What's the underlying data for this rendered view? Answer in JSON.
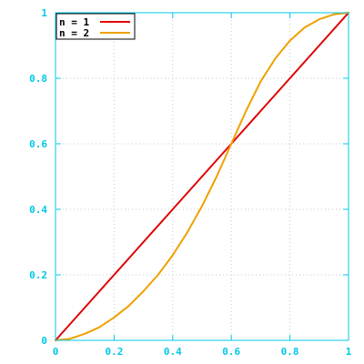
{
  "chart_data": {
    "type": "line",
    "title": "",
    "xlabel": "",
    "ylabel": "",
    "xlim": [
      0,
      1
    ],
    "ylim": [
      0,
      1
    ],
    "grid": true,
    "legend_position": "top-left",
    "x_ticks": [
      "0",
      "0.2",
      "0.4",
      "0.6",
      "0.8",
      "1"
    ],
    "y_ticks": [
      "0",
      "0.2",
      "0.4",
      "0.6",
      "0.8",
      "1"
    ],
    "x_tick_values": [
      0,
      0.2,
      0.4,
      0.6,
      0.8,
      1
    ],
    "y_tick_values": [
      0,
      0.2,
      0.4,
      0.6,
      0.8,
      1
    ],
    "axis_color": "#00c8e8",
    "series": [
      {
        "name": "n = 1",
        "color": "#e00000",
        "x": [
          0,
          0.1,
          0.2,
          0.3,
          0.4,
          0.5,
          0.6,
          0.7,
          0.8,
          0.9,
          1
        ],
        "y": [
          0,
          0.1,
          0.2,
          0.3,
          0.4,
          0.5,
          0.6,
          0.7,
          0.8,
          0.9,
          1
        ]
      },
      {
        "name": "n = 2",
        "color": "#f0a000",
        "x": [
          0,
          0.05,
          0.1,
          0.15,
          0.2,
          0.25,
          0.3,
          0.35,
          0.4,
          0.45,
          0.5,
          0.55,
          0.6,
          0.65,
          0.7,
          0.75,
          0.8,
          0.85,
          0.9,
          0.95,
          1
        ],
        "y": [
          0,
          0.005,
          0.02,
          0.04,
          0.07,
          0.105,
          0.15,
          0.2,
          0.26,
          0.33,
          0.41,
          0.5,
          0.6,
          0.7,
          0.79,
          0.86,
          0.915,
          0.955,
          0.98,
          0.995,
          1
        ]
      }
    ]
  }
}
